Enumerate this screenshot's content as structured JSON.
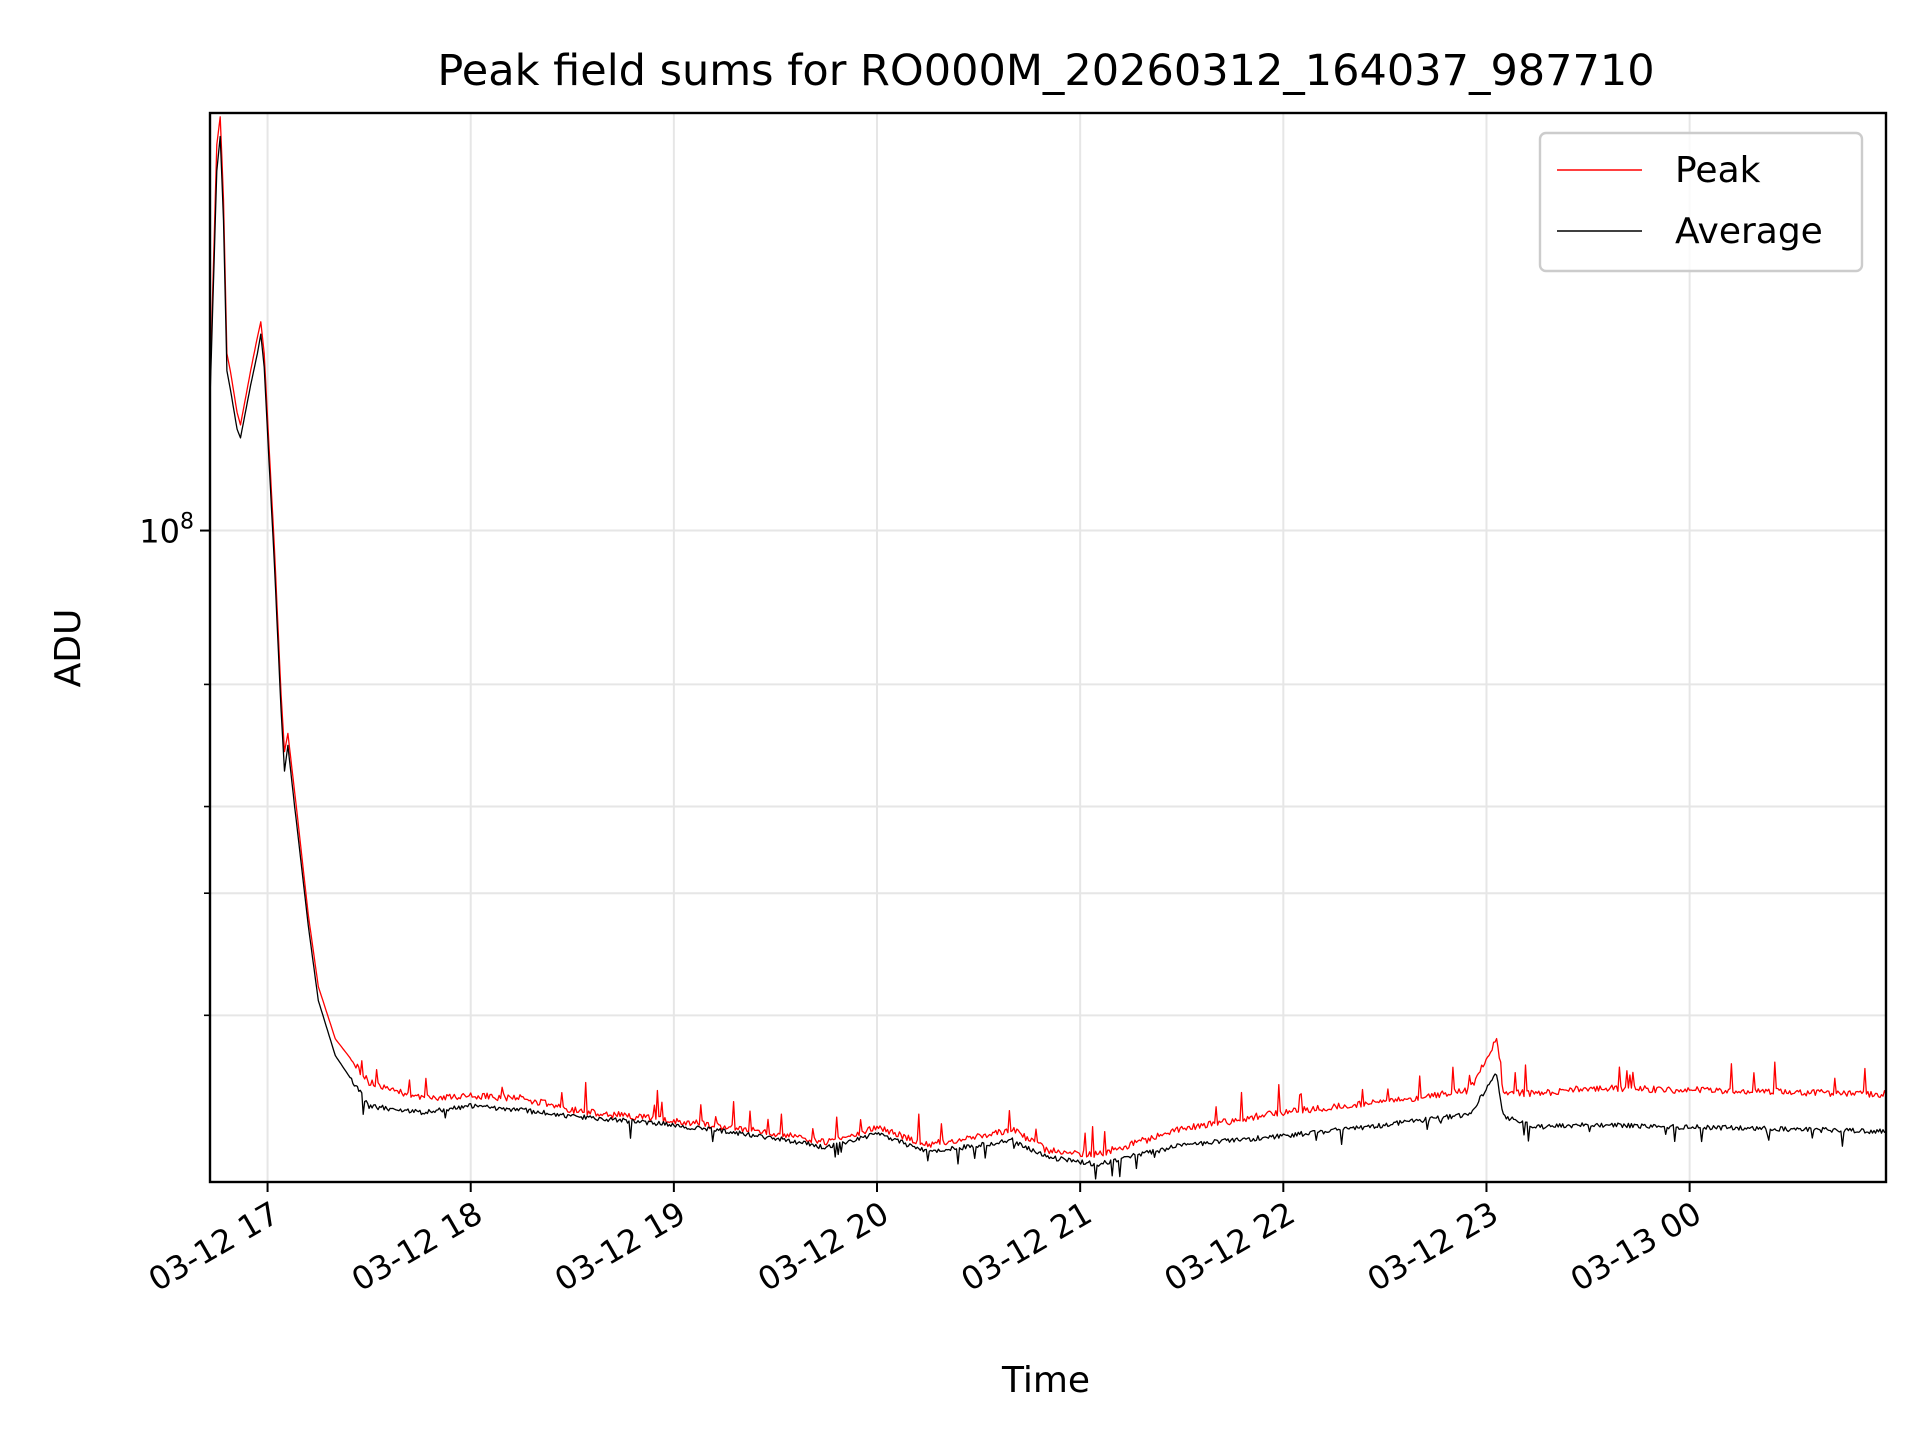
{
  "chart_data": {
    "type": "line",
    "title": "Peak field sums for RO000M_20260312_164037_987710",
    "xlabel": "Time",
    "ylabel": "ADU",
    "y_scale": "log",
    "grid": true,
    "legend_placement": "top-right",
    "x_range": [
      "2026-03-12 16:43",
      "2026-03-13 00:58"
    ],
    "ylim": [
      11500000,
      400000000
    ],
    "x_ticks": [
      {
        "t": "2026-03-12 17:00",
        "label": "03-12 17"
      },
      {
        "t": "2026-03-12 18:00",
        "label": "03-12 18"
      },
      {
        "t": "2026-03-12 19:00",
        "label": "03-12 19"
      },
      {
        "t": "2026-03-12 20:00",
        "label": "03-12 20"
      },
      {
        "t": "2026-03-12 21:00",
        "label": "03-12 21"
      },
      {
        "t": "2026-03-12 22:00",
        "label": "03-12 22"
      },
      {
        "t": "2026-03-12 23:00",
        "label": "03-12 23"
      },
      {
        "t": "2026-03-13 00:00",
        "label": "03-13 00"
      }
    ],
    "y_major_ticks": [
      {
        "value": 100000000,
        "base": "10",
        "exp": "8"
      }
    ],
    "y_minor_ticks": [
      20000000,
      30000000,
      40000000,
      60000000
    ],
    "series": [
      {
        "name": "Peak",
        "color": "#ff0000",
        "points": [
          [
            "2026-03-12 16:43",
            160000000
          ],
          [
            "2026-03-12 16:45",
            360000000
          ],
          [
            "2026-03-12 16:46",
            395000000
          ],
          [
            "2026-03-12 16:47",
            300000000
          ],
          [
            "2026-03-12 16:48",
            180000000
          ],
          [
            "2026-03-12 16:49",
            170000000
          ],
          [
            "2026-03-12 16:51",
            148000000
          ],
          [
            "2026-03-12 16:52",
            142000000
          ],
          [
            "2026-03-12 16:55",
            170000000
          ],
          [
            "2026-03-12 16:57",
            190000000
          ],
          [
            "2026-03-12 16:58",
            200000000
          ],
          [
            "2026-03-12 16:59",
            180000000
          ],
          [
            "2026-03-12 17:00",
            145000000
          ],
          [
            "2026-03-12 17:02",
            95000000
          ],
          [
            "2026-03-12 17:04",
            58000000
          ],
          [
            "2026-03-12 17:05",
            48000000
          ],
          [
            "2026-03-12 17:06",
            51000000
          ],
          [
            "2026-03-12 17:08",
            42000000
          ],
          [
            "2026-03-12 17:12",
            28000000
          ],
          [
            "2026-03-12 17:15",
            22000000
          ],
          [
            "2026-03-12 17:20",
            18500000
          ],
          [
            "2026-03-12 17:30",
            16000000
          ],
          [
            "2026-03-12 17:45",
            15200000
          ],
          [
            "2026-03-12 18:00",
            15300000
          ],
          [
            "2026-03-12 18:15",
            15200000
          ],
          [
            "2026-03-12 18:30",
            14600000
          ],
          [
            "2026-03-12 19:00",
            14100000
          ],
          [
            "2026-03-12 19:30",
            13500000
          ],
          [
            "2026-03-12 19:45",
            13100000
          ],
          [
            "2026-03-12 20:00",
            13800000
          ],
          [
            "2026-03-12 20:15",
            13000000
          ],
          [
            "2026-03-12 20:40",
            13700000
          ],
          [
            "2026-03-12 20:50",
            12800000
          ],
          [
            "2026-03-12 21:05",
            12600000
          ],
          [
            "2026-03-12 21:30",
            13700000
          ],
          [
            "2026-03-12 22:00",
            14500000
          ],
          [
            "2026-03-12 22:30",
            15000000
          ],
          [
            "2026-03-12 22:55",
            15600000
          ],
          [
            "2026-03-12 23:03",
            18500000
          ],
          [
            "2026-03-12 23:05",
            15500000
          ],
          [
            "2026-03-12 23:15",
            15400000
          ],
          [
            "2026-03-12 23:30",
            15700000
          ],
          [
            "2026-03-12 24:00",
            15600000
          ],
          [
            "2026-03-13 00:30",
            15500000
          ],
          [
            "2026-03-13 00:58",
            15400000
          ]
        ]
      },
      {
        "name": "Average",
        "color": "#000000",
        "points": [
          [
            "2026-03-12 16:43",
            155000000
          ],
          [
            "2026-03-12 16:45",
            330000000
          ],
          [
            "2026-03-12 16:46",
            370000000
          ],
          [
            "2026-03-12 16:47",
            280000000
          ],
          [
            "2026-03-12 16:48",
            170000000
          ],
          [
            "2026-03-12 16:49",
            160000000
          ],
          [
            "2026-03-12 16:51",
            140000000
          ],
          [
            "2026-03-12 16:52",
            136000000
          ],
          [
            "2026-03-12 16:55",
            162000000
          ],
          [
            "2026-03-12 16:57",
            180000000
          ],
          [
            "2026-03-12 16:58",
            192000000
          ],
          [
            "2026-03-12 16:59",
            172000000
          ],
          [
            "2026-03-12 17:00",
            138000000
          ],
          [
            "2026-03-12 17:02",
            90000000
          ],
          [
            "2026-03-12 17:04",
            55000000
          ],
          [
            "2026-03-12 17:05",
            45000000
          ],
          [
            "2026-03-12 17:06",
            49000000
          ],
          [
            "2026-03-12 17:08",
            40000000
          ],
          [
            "2026-03-12 17:12",
            27000000
          ],
          [
            "2026-03-12 17:15",
            21000000
          ],
          [
            "2026-03-12 17:20",
            17500000
          ],
          [
            "2026-03-12 17:30",
            14800000
          ],
          [
            "2026-03-12 17:45",
            14500000
          ],
          [
            "2026-03-12 18:00",
            14800000
          ],
          [
            "2026-03-12 18:15",
            14600000
          ],
          [
            "2026-03-12 18:30",
            14300000
          ],
          [
            "2026-03-12 19:00",
            13900000
          ],
          [
            "2026-03-12 19:30",
            13300000
          ],
          [
            "2026-03-12 19:45",
            12900000
          ],
          [
            "2026-03-12 20:00",
            13500000
          ],
          [
            "2026-03-12 20:15",
            12700000
          ],
          [
            "2026-03-12 20:40",
            13200000
          ],
          [
            "2026-03-12 20:50",
            12500000
          ],
          [
            "2026-03-12 21:05",
            12200000
          ],
          [
            "2026-03-12 21:30",
            13000000
          ],
          [
            "2026-03-12 22:00",
            13400000
          ],
          [
            "2026-03-12 22:30",
            13900000
          ],
          [
            "2026-03-12 22:55",
            14400000
          ],
          [
            "2026-03-12 23:03",
            16500000
          ],
          [
            "2026-03-12 23:05",
            14300000
          ],
          [
            "2026-03-12 23:15",
            13800000
          ],
          [
            "2026-03-12 23:30",
            13900000
          ],
          [
            "2026-03-12 24:00",
            13800000
          ],
          [
            "2026-03-13 00:30",
            13700000
          ],
          [
            "2026-03-13 00:58",
            13600000
          ]
        ]
      }
    ]
  }
}
